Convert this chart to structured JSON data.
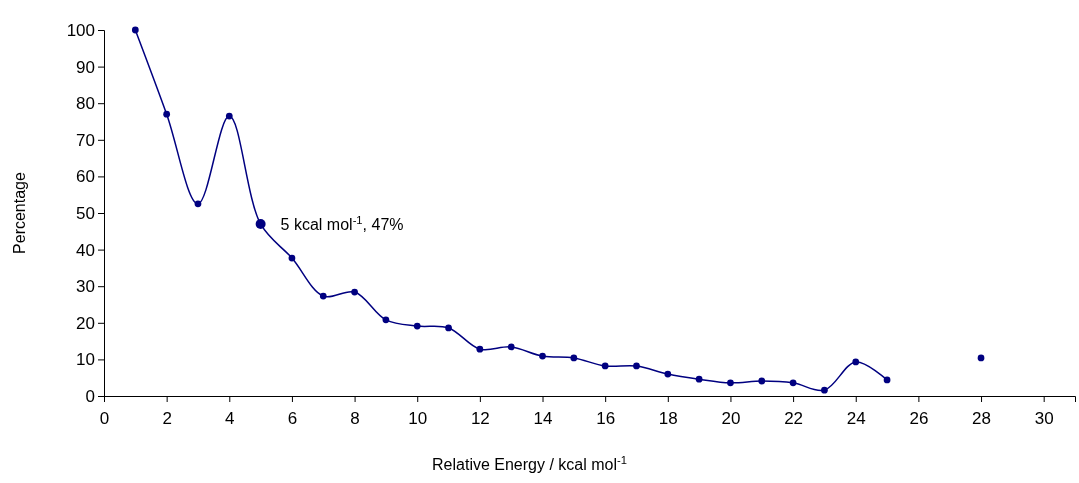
{
  "chart_data": {
    "type": "line",
    "xlabel": "Relative Energy / kcal mol$^{-1}$",
    "ylabel": "Percentage",
    "xlim": [
      0,
      31
    ],
    "ylim": [
      0,
      100
    ],
    "xticks": [
      0,
      2,
      4,
      6,
      8,
      10,
      12,
      14,
      16,
      18,
      20,
      22,
      24,
      26,
      28,
      30
    ],
    "yticks": [
      0,
      10,
      20,
      30,
      40,
      50,
      60,
      70,
      80,
      90,
      100
    ],
    "grid": false,
    "marker": "circle",
    "line_style": "solid",
    "series": [
      {
        "color": "#000080",
        "x": [
          1,
          2,
          3,
          4,
          5,
          6,
          7,
          8,
          9,
          10,
          11,
          12,
          13,
          14,
          15,
          16,
          17,
          18,
          19,
          20,
          21,
          22,
          23,
          24,
          25
        ],
        "values": [
          100,
          77,
          52.5,
          76.5,
          47,
          37.7,
          27.3,
          28.4,
          20.8,
          19.1,
          18.6,
          12.8,
          13.4,
          10.9,
          10.4,
          8.2,
          8.2,
          6,
          4.6,
          3.6,
          4.1,
          3.6,
          1.6,
          9.3,
          4.4
        ]
      },
      {
        "type": "scatter",
        "color": "#000080",
        "x": [
          28
        ],
        "values": [
          10.4
        ]
      }
    ],
    "annotations": [
      {
        "text": "5 kcal mol$^{-1}$, 47%",
        "x": 5,
        "y": 47
      }
    ]
  }
}
